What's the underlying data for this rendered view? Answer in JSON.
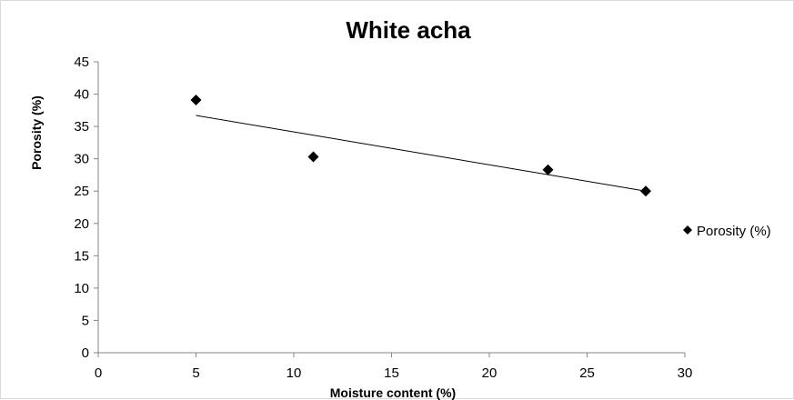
{
  "chart_data": {
    "type": "scatter",
    "title": "White acha",
    "xlabel": "Moisture content (%)",
    "ylabel": "Porosity (%)",
    "xlim": [
      0,
      30
    ],
    "ylim": [
      0,
      45
    ],
    "x_ticks": [
      0,
      5,
      10,
      15,
      20,
      25,
      30
    ],
    "y_ticks": [
      0,
      5,
      10,
      15,
      20,
      25,
      30,
      35,
      40,
      45
    ],
    "series": [
      {
        "name": "Porosity (%)",
        "marker": "diamond",
        "color": "#000000",
        "x": [
          5,
          11,
          23,
          28
        ],
        "y": [
          39.1,
          30.3,
          28.3,
          25.0
        ]
      }
    ],
    "trendline": {
      "type": "linear",
      "x": [
        5,
        28
      ],
      "y": [
        36.7,
        25.0
      ],
      "color": "#000000"
    },
    "grid": false,
    "legend_position": "right"
  }
}
